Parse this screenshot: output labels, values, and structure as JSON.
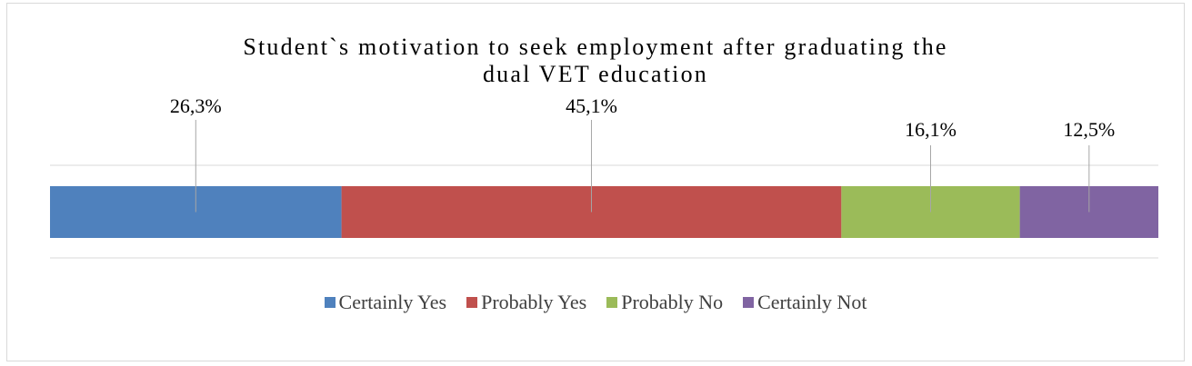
{
  "chart_data": {
    "type": "bar",
    "orientation": "horizontal",
    "stacked": "100%",
    "title": "Student`s motivation to seek employment after graduating the dual VET education",
    "title_lines": [
      "Student`s motivation to seek employment after graduating the",
      "dual VET education"
    ],
    "categories": [
      ""
    ],
    "series": [
      {
        "name": "Certainly Yes",
        "values": [
          26.3
        ],
        "label": "26,3%",
        "color": "#4f81bd"
      },
      {
        "name": "Probably Yes",
        "values": [
          45.1
        ],
        "label": "45,1%",
        "color": "#c0504d"
      },
      {
        "name": "Probably No",
        "values": [
          16.1
        ],
        "label": "16,1%",
        "color": "#9bbb59"
      },
      {
        "name": "Certainly Not",
        "values": [
          12.5
        ],
        "label": "12,5%",
        "color": "#8064a2"
      }
    ],
    "xlim": [
      0,
      100
    ],
    "grid": true,
    "legend": "bottom",
    "data_labels": "above with leader lines"
  }
}
